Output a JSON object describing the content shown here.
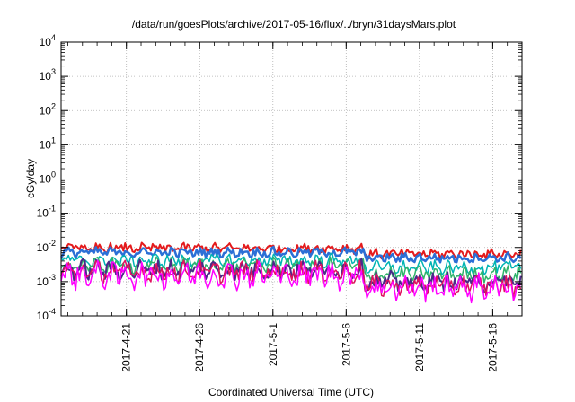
{
  "chart_data": {
    "type": "line",
    "title": "/data/run/goesPlots/archive/2017-05-16/flux/../bryn/31daysMars.plot",
    "xlabel": "Coordinated Universal Time (UTC)",
    "ylabel": "cGy/day",
    "yscale": "log",
    "ylim": [
      0.0001,
      10000
    ],
    "xlim": [
      "2017-04-16T13:00",
      "2017-05-18T00:00"
    ],
    "grid": true,
    "x_ticks": [
      "2017-4-21",
      "2017-4-26",
      "2017-5-1",
      "2017-5-6",
      "2017-5-11",
      "2017-5-16"
    ],
    "y_ticks": [
      {
        "base": "10",
        "exp": "4"
      },
      {
        "base": "10",
        "exp": "3"
      },
      {
        "base": "10",
        "exp": "2"
      },
      {
        "base": "10",
        "exp": "1"
      },
      {
        "base": "10",
        "exp": "0"
      },
      {
        "base": "10",
        "exp": "-1"
      },
      {
        "base": "10",
        "exp": "-2"
      },
      {
        "base": "10",
        "exp": "-3"
      },
      {
        "base": "10",
        "exp": "-4"
      }
    ],
    "series": [
      {
        "color": "#e41a1c",
        "level_before_0507": 0.0095,
        "level_after_0507": 0.0065,
        "noise": 0.28,
        "dip": 0.1,
        "width": 2
      },
      {
        "color": "#2b6fd6",
        "level_before_0507": 0.0072,
        "level_after_0507": 0.005,
        "noise": 0.26,
        "dip": 0.12,
        "width": 2.5
      },
      {
        "color": "#00b4b4",
        "level_before_0507": 0.0042,
        "level_after_0507": 0.0026,
        "noise": 0.35,
        "dip": 0.18,
        "width": 1.5
      },
      {
        "color": "#2fb36a",
        "level_before_0507": 0.003,
        "level_after_0507": 0.0017,
        "noise": 0.4,
        "dip": 0.22,
        "width": 1.5
      },
      {
        "color": "#4b2a88",
        "level_before_0507": 0.0023,
        "level_after_0507": 0.001,
        "noise": 0.5,
        "dip": 0.28,
        "width": 2
      },
      {
        "color": "#e0115f",
        "level_before_0507": 0.002,
        "level_after_0507": 0.0008,
        "noise": 0.55,
        "dip": 0.3,
        "width": 1.5
      },
      {
        "color": "#ff00ff",
        "level_before_0507": 0.0016,
        "level_after_0507": 0.0007,
        "noise": 0.7,
        "dip": 0.35,
        "width": 1.5
      }
    ]
  }
}
